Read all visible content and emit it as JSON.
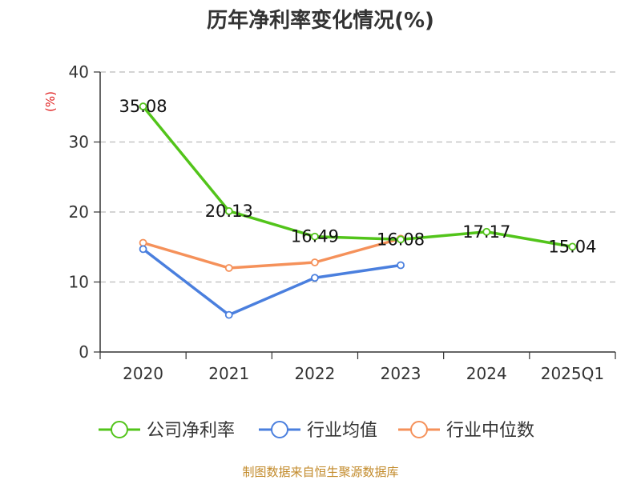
{
  "chart_data": {
    "type": "line",
    "title": "历年净利率变化情况(%)",
    "ylabel": "(%)",
    "categories": [
      "2020",
      "2021",
      "2022",
      "2023",
      "2024",
      "2025Q1"
    ],
    "ylim": [
      0,
      40
    ],
    "yticks": [
      "0",
      "10",
      "20",
      "30",
      "40"
    ],
    "grid": true,
    "legend_position": "bottom",
    "series": [
      {
        "name": "公司净利率",
        "color": "#52c41a",
        "values": [
          35.08,
          20.13,
          16.49,
          16.08,
          17.17,
          15.04
        ],
        "labels": [
          "35.08",
          "20.13",
          "16.49",
          "16.08",
          "17.17",
          "15.04"
        ]
      },
      {
        "name": "行业均值",
        "color": "#4a7fde",
        "values": [
          14.7,
          5.3,
          10.6,
          12.4,
          null,
          null
        ]
      },
      {
        "name": "行业中位数",
        "color": "#f5915a",
        "values": [
          15.6,
          12.0,
          12.8,
          16.2,
          null,
          null
        ]
      }
    ],
    "source": "制图数据来自恒生聚源数据库"
  }
}
